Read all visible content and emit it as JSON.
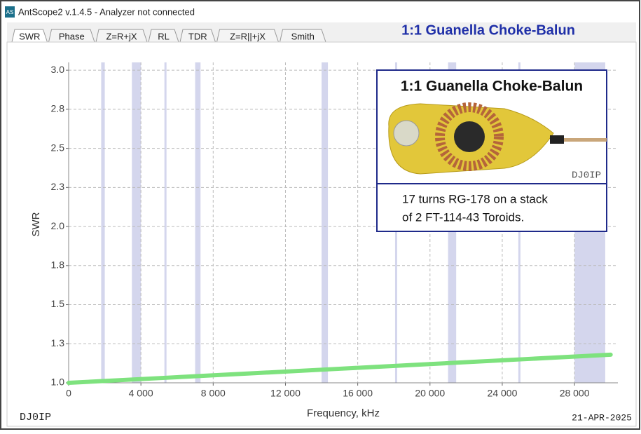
{
  "window": {
    "icon": "AS",
    "title": "AntScope2 v.1.4.5 - Analyzer not connected"
  },
  "tabs": [
    "SWR",
    "Phase",
    "Z=R+jX",
    "RL",
    "TDR",
    "Z=R||+jX",
    "Smith"
  ],
  "heading": "1:1 Guanella Choke-Balun",
  "chart_data": {
    "type": "line",
    "x_label": "Frequency, kHz",
    "y_label": "SWR",
    "x": [
      0,
      5000,
      10000,
      15000,
      20000,
      25000,
      30000
    ],
    "values": [
      1.0,
      1.03,
      1.06,
      1.09,
      1.12,
      1.15,
      1.18
    ],
    "color": "#7ee27e",
    "xlim": [
      0,
      30400
    ],
    "ylim": [
      1.0,
      3.05
    ],
    "xticks": [
      0,
      {
        "value": 4000,
        "label": "4 000"
      },
      {
        "value": 8000,
        "label": "8 000"
      },
      {
        "value": 12000,
        "label": "12 000"
      },
      {
        "value": 16000,
        "label": "16 000"
      },
      {
        "value": 20000,
        "label": "20 000"
      },
      {
        "value": 24000,
        "label": "24 000"
      },
      {
        "value": 28000,
        "label": "28 000"
      }
    ],
    "yticks": [
      {
        "value": 1.0,
        "label": "1.0"
      },
      {
        "value": 1.25,
        "label": "1.3"
      },
      {
        "value": 1.5,
        "label": "1.5"
      },
      {
        "value": 1.75,
        "label": "1.8"
      },
      {
        "value": 2.0,
        "label": "2.0"
      },
      {
        "value": 2.25,
        "label": "2.3"
      },
      {
        "value": 2.5,
        "label": "2.5"
      },
      {
        "value": 2.75,
        "label": "2.8"
      },
      {
        "value": 3.0,
        "label": "3.0"
      }
    ],
    "bands": [
      [
        1800,
        2000
      ],
      [
        3500,
        4000
      ],
      [
        5300,
        5400
      ],
      [
        7000,
        7300
      ],
      [
        14000,
        14350
      ],
      [
        18068,
        18168
      ],
      [
        21000,
        21450
      ],
      [
        24890,
        24990
      ],
      [
        28000,
        29700
      ]
    ],
    "band_color": "#c9cce8",
    "grid": true
  },
  "inset": {
    "title": "1:1 Guanella Choke-Balun",
    "watermark": "DJ0IP",
    "caption": [
      "17 turns RG-178 on a stack",
      "of 2 FT-114-43 Toroids."
    ]
  },
  "footer": {
    "left": "DJ0IP",
    "right": "21-APR-2025"
  }
}
